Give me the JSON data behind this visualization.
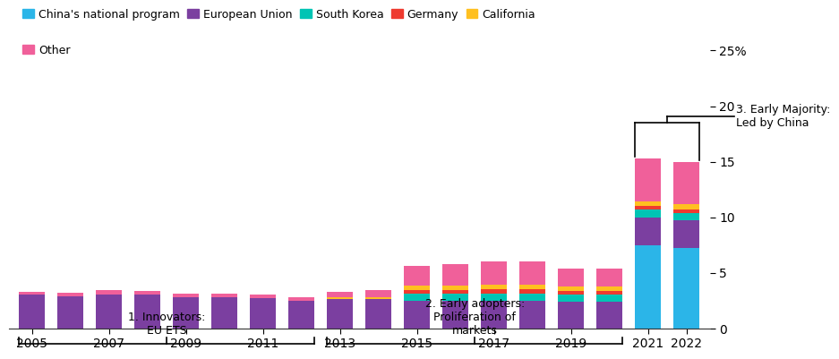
{
  "years": [
    2005,
    2006,
    2007,
    2008,
    2009,
    2010,
    2011,
    2012,
    2013,
    2014,
    2015,
    2016,
    2017,
    2018,
    2019,
    2020,
    2021,
    2022
  ],
  "china": [
    0,
    0,
    0,
    0,
    0,
    0,
    0,
    0,
    0,
    0,
    0,
    0,
    0,
    0,
    0,
    0,
    7.5,
    7.2
  ],
  "eu": [
    3.0,
    2.9,
    3.0,
    3.0,
    2.8,
    2.8,
    2.7,
    2.5,
    2.6,
    2.6,
    2.5,
    2.5,
    2.5,
    2.5,
    2.4,
    2.4,
    2.5,
    2.5
  ],
  "south_korea": [
    0,
    0,
    0,
    0,
    0,
    0,
    0,
    0,
    0,
    0,
    0.6,
    0.6,
    0.65,
    0.65,
    0.6,
    0.6,
    0.65,
    0.65
  ],
  "germany": [
    0,
    0,
    0,
    0,
    0,
    0,
    0,
    0,
    0,
    0,
    0.3,
    0.3,
    0.35,
    0.35,
    0.35,
    0.35,
    0.35,
    0.35
  ],
  "california": [
    0,
    0,
    0,
    0,
    0,
    0,
    0,
    0,
    0.15,
    0.15,
    0.4,
    0.4,
    0.45,
    0.45,
    0.4,
    0.4,
    0.45,
    0.45
  ],
  "other": [
    0.3,
    0.3,
    0.4,
    0.35,
    0.3,
    0.3,
    0.3,
    0.3,
    0.5,
    0.7,
    1.8,
    2.0,
    2.1,
    2.1,
    1.6,
    1.6,
    3.8,
    3.8
  ],
  "colors": {
    "china": "#2BB5E8",
    "eu": "#7B3FA0",
    "south_korea": "#00C4B4",
    "germany": "#EE3A2F",
    "california": "#FFC020",
    "other": "#F0609A"
  },
  "ylim": [
    0,
    25
  ],
  "yticks": [
    0,
    5,
    10,
    15,
    20,
    25
  ],
  "ytick_labels": [
    "0",
    "5",
    "10",
    "15",
    "20",
    "25%"
  ],
  "background_color": "#ffffff",
  "phase1_label": "1. Innovators:\nEU ETS",
  "phase2_label": "2. Early adopters:\nProliferation of\nmarkets",
  "phase3_label": "3. Early Majority:\nLed by China",
  "legend_labels": [
    "China's national program",
    "European Union",
    "South Korea",
    "Germany",
    "California",
    "Other"
  ]
}
